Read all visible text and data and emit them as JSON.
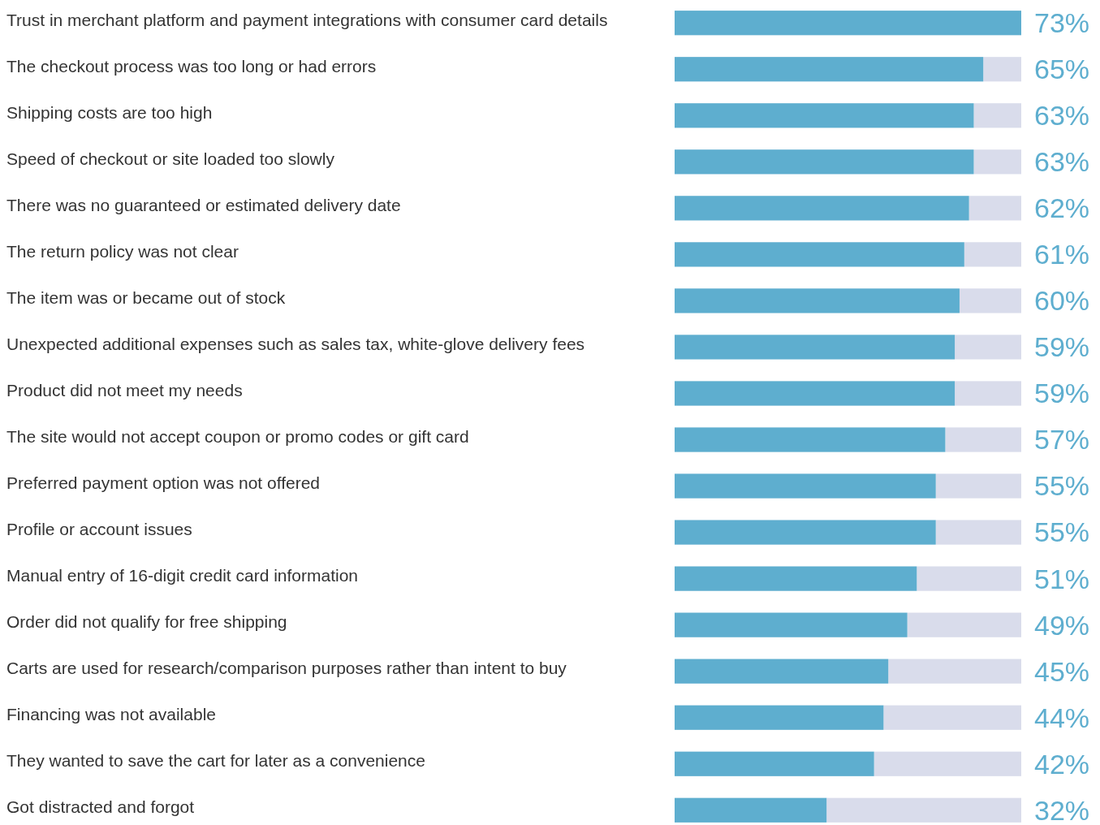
{
  "chart_data": {
    "type": "bar",
    "orientation": "horizontal",
    "categories": [
      "Trust in merchant platform and payment integrations with consumer card details",
      "The checkout process was too long or had errors",
      "Shipping costs are too high",
      "Speed of checkout or site loaded too slowly",
      "There was no guaranteed or estimated delivery date",
      "The return policy was not clear",
      "The item was or became out of stock",
      "Unexpected additional expenses such as sales tax, white-glove delivery fees",
      "Product did not meet my needs",
      "The site would not accept coupon or promo codes or gift card",
      "Preferred payment option was not offered",
      "Profile or account issues",
      "Manual entry of 16-digit credit card information",
      "Order did not qualify for free shipping",
      "Carts are used for research/comparison purposes rather than intent to buy",
      "Financing was not available",
      "They wanted to save the cart for later as a convenience",
      "Got distracted and forgot"
    ],
    "values": [
      73,
      65,
      63,
      63,
      62,
      61,
      60,
      59,
      59,
      57,
      55,
      55,
      51,
      49,
      45,
      44,
      42,
      32
    ],
    "value_labels": [
      "73%",
      "65%",
      "63%",
      "63%",
      "62%",
      "61%",
      "60%",
      "59%",
      "59%",
      "57%",
      "55%",
      "55%",
      "51%",
      "49%",
      "45%",
      "44%",
      "42%",
      "32%"
    ],
    "color": "#5eaecf",
    "xlim": [
      0,
      73
    ],
    "tick_labels": "y"
  }
}
